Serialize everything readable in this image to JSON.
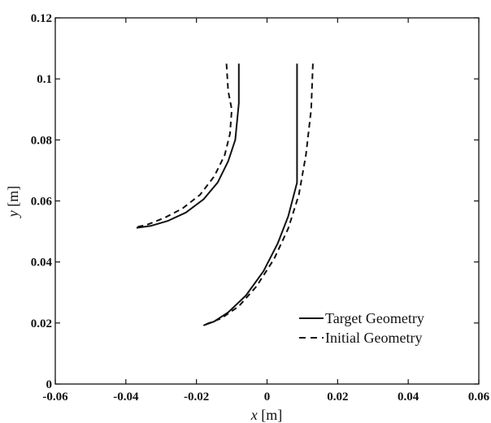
{
  "chart_data": {
    "type": "line",
    "title": "",
    "xlabel": {
      "symbol": "x",
      "unit": " [m]"
    },
    "ylabel": {
      "symbol": "y",
      "unit": " [m]"
    },
    "xlim": [
      -0.06,
      0.06
    ],
    "ylim": [
      0,
      0.12
    ],
    "xticks": [
      -0.06,
      -0.04,
      -0.02,
      0,
      0.02,
      0.04,
      0.06
    ],
    "xtick_labels": [
      "-0.06",
      "-0.04",
      "-0.02",
      "0",
      "0.02",
      "0.04",
      "0.06"
    ],
    "yticks": [
      0,
      0.02,
      0.04,
      0.06,
      0.08,
      0.1,
      0.12
    ],
    "ytick_labels": [
      "0",
      "0.02",
      "0.04",
      "0.06",
      "0.08",
      "0.1",
      "0.12"
    ],
    "grid": false,
    "legend_position": "bottom-right",
    "series": [
      {
        "name": "Target Geometry",
        "style": "solid",
        "color": "#111111",
        "segments": [
          [
            [
              -0.008,
              0.105
            ],
            [
              -0.008,
              0.092
            ],
            [
              -0.009,
              0.08
            ],
            [
              -0.011,
              0.073
            ],
            [
              -0.014,
              0.066
            ],
            [
              -0.018,
              0.0605
            ],
            [
              -0.023,
              0.0562
            ],
            [
              -0.028,
              0.0535
            ],
            [
              -0.033,
              0.0518
            ],
            [
              -0.037,
              0.0512
            ]
          ],
          [
            [
              0.0085,
              0.105
            ],
            [
              0.0085,
              0.066
            ],
            [
              0.006,
              0.055
            ],
            [
              0.003,
              0.046
            ],
            [
              -0.001,
              0.037
            ],
            [
              -0.006,
              0.029
            ],
            [
              -0.011,
              0.0235
            ],
            [
              -0.015,
              0.0205
            ],
            [
              -0.018,
              0.0192
            ]
          ]
        ]
      },
      {
        "name": "Initial Geometry",
        "style": "dashed",
        "color": "#111111",
        "segments": [
          [
            [
              -0.0115,
              0.105
            ],
            [
              -0.011,
              0.096
            ],
            [
              -0.01,
              0.09
            ],
            [
              -0.0105,
              0.082
            ],
            [
              -0.012,
              0.075
            ],
            [
              -0.015,
              0.068
            ],
            [
              -0.019,
              0.062
            ],
            [
              -0.024,
              0.0575
            ],
            [
              -0.029,
              0.0545
            ],
            [
              -0.034,
              0.0522
            ],
            [
              -0.0375,
              0.0513
            ]
          ],
          [
            [
              0.013,
              0.105
            ],
            [
              0.0125,
              0.09
            ],
            [
              0.011,
              0.075
            ],
            [
              0.009,
              0.062
            ],
            [
              0.006,
              0.051
            ],
            [
              0.002,
              0.041
            ],
            [
              -0.003,
              0.032
            ],
            [
              -0.008,
              0.0255
            ],
            [
              -0.013,
              0.0215
            ],
            [
              -0.018,
              0.0193
            ]
          ]
        ]
      }
    ]
  }
}
